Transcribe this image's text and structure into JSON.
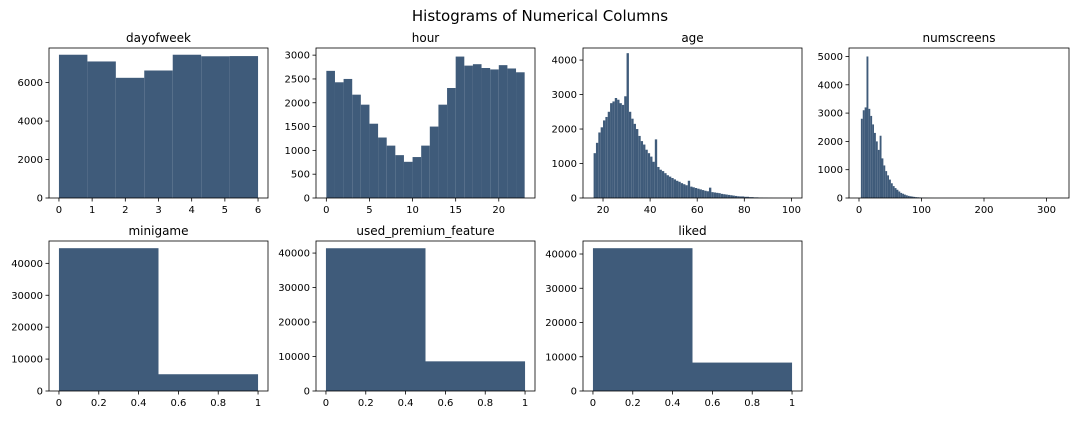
{
  "figure_title": "Histograms of Numerical Columns",
  "bar_color": "#3f5b7a",
  "chart_data": [
    {
      "type": "histogram",
      "title": "dayofweek",
      "xlim": [
        -0.3,
        6.3
      ],
      "ylim": [
        0,
        7800
      ],
      "xticks": [
        0,
        1,
        2,
        3,
        4,
        5,
        6
      ],
      "yticks": [
        0,
        2000,
        4000,
        6000
      ],
      "bin_edges": [
        0,
        0.857,
        1.714,
        2.571,
        3.429,
        4.286,
        5.143,
        6
      ],
      "counts": [
        7450,
        7100,
        6250,
        6630,
        7450,
        7370,
        7380
      ]
    },
    {
      "type": "histogram",
      "title": "hour",
      "xlim": [
        -1.2,
        24.2
      ],
      "ylim": [
        0,
        3150
      ],
      "xticks": [
        0,
        5,
        10,
        15,
        20
      ],
      "yticks": [
        0,
        500,
        1000,
        1500,
        2000,
        2500,
        3000
      ],
      "bin_edges": [
        0,
        1,
        2,
        3,
        4,
        5,
        6,
        7,
        8,
        9,
        10,
        11,
        12,
        13,
        14,
        15,
        16,
        17,
        18,
        19,
        20,
        21,
        22,
        23
      ],
      "counts": [
        2670,
        2430,
        2500,
        2170,
        1960,
        1560,
        1270,
        1100,
        900,
        760,
        860,
        1100,
        1500,
        1960,
        2310,
        2970,
        2780,
        2810,
        2730,
        2700,
        2790,
        2720,
        2640
      ]
    },
    {
      "type": "histogram",
      "title": "age",
      "xlim": [
        11.5,
        104.5
      ],
      "ylim": [
        0,
        4350
      ],
      "xticks": [
        20,
        40,
        60,
        80,
        100
      ],
      "yticks": [
        0,
        1000,
        2000,
        3000,
        4000
      ],
      "bin_edges": [
        16,
        17,
        18,
        19,
        20,
        21,
        22,
        23,
        24,
        25,
        26,
        27,
        28,
        29,
        30,
        31,
        32,
        33,
        34,
        35,
        36,
        37,
        38,
        39,
        40,
        41,
        42,
        43,
        44,
        45,
        46,
        47,
        48,
        49,
        50,
        51,
        52,
        53,
        54,
        55,
        56,
        57,
        58,
        59,
        60,
        61,
        62,
        63,
        64,
        65,
        66,
        67,
        68,
        69,
        70,
        71,
        72,
        73,
        74,
        75,
        76,
        77,
        78,
        80,
        82,
        84,
        86,
        88,
        90,
        92,
        94,
        96,
        98,
        101
      ],
      "counts": [
        1300,
        1600,
        1900,
        2050,
        2250,
        2350,
        2500,
        2750,
        2800,
        2900,
        2850,
        2750,
        2700,
        2950,
        4200,
        2500,
        2300,
        2150,
        2000,
        1800,
        1650,
        1550,
        1400,
        1300,
        1200,
        1050,
        1700,
        900,
        820,
        780,
        720,
        660,
        620,
        580,
        540,
        500,
        470,
        430,
        400,
        370,
        500,
        330,
        310,
        290,
        270,
        250,
        230,
        210,
        195,
        300,
        170,
        160,
        150,
        140,
        120,
        110,
        100,
        90,
        80,
        70,
        60,
        50,
        45,
        35,
        25,
        18,
        12,
        8,
        5,
        3,
        2,
        1,
        1
      ]
    },
    {
      "type": "histogram",
      "title": "numscreens",
      "xlim": [
        -16,
        336
      ],
      "ylim": [
        0,
        5300
      ],
      "xticks": [
        0,
        100,
        200,
        300
      ],
      "yticks": [
        0,
        1000,
        2000,
        3000,
        4000,
        5000
      ],
      "bin_edges": [
        0,
        3,
        6,
        9,
        12,
        15,
        18,
        21,
        24,
        27,
        30,
        33,
        36,
        39,
        42,
        45,
        48,
        51,
        54,
        57,
        60,
        63,
        66,
        69,
        72,
        75,
        78,
        81,
        84,
        87,
        90,
        93,
        96,
        99,
        102,
        105,
        108,
        111,
        114,
        117,
        120,
        130,
        140,
        150,
        160,
        170,
        180,
        200,
        220,
        240,
        260,
        280,
        300,
        325
      ],
      "counts": [
        0,
        2800,
        3100,
        3200,
        5000,
        3150,
        2900,
        2600,
        2300,
        2000,
        1700,
        2200,
        1400,
        1150,
        950,
        800,
        650,
        520,
        420,
        350,
        290,
        230,
        180,
        150,
        120,
        95,
        75,
        60,
        50,
        40,
        30,
        25,
        20,
        15,
        12,
        10,
        8,
        6,
        5,
        4,
        2,
        2,
        2,
        1,
        1,
        1,
        1,
        1,
        0,
        0,
        0,
        0,
        1
      ]
    },
    {
      "type": "histogram",
      "title": "minigame",
      "xlim": [
        -0.05,
        1.05
      ],
      "ylim": [
        0,
        47000
      ],
      "xticks": [
        0.0,
        0.2,
        0.4,
        0.6,
        0.8,
        1.0
      ],
      "yticks": [
        0,
        10000,
        20000,
        30000,
        40000
      ],
      "bin_edges": [
        0,
        0.5,
        1
      ],
      "counts": [
        44750,
        5250
      ]
    },
    {
      "type": "histogram",
      "title": "used_premium_feature",
      "xlim": [
        -0.05,
        1.05
      ],
      "ylim": [
        0,
        43500
      ],
      "xticks": [
        0.0,
        0.2,
        0.4,
        0.6,
        0.8,
        1.0
      ],
      "yticks": [
        0,
        10000,
        20000,
        30000,
        40000
      ],
      "bin_edges": [
        0,
        0.5,
        1
      ],
      "counts": [
        41400,
        8600
      ]
    },
    {
      "type": "histogram",
      "title": "liked",
      "xlim": [
        -0.05,
        1.05
      ],
      "ylim": [
        0,
        43800
      ],
      "xticks": [
        0.0,
        0.2,
        0.4,
        0.6,
        0.8,
        1.0
      ],
      "yticks": [
        0,
        10000,
        20000,
        30000,
        40000
      ],
      "bin_edges": [
        0,
        0.5,
        1
      ],
      "counts": [
        41700,
        8300
      ]
    }
  ]
}
